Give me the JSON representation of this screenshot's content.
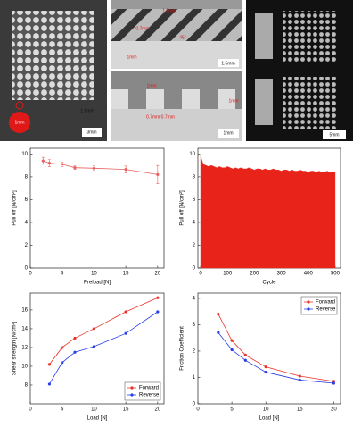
{
  "photo_labels": [
    "1mm",
    "1.5mm",
    "3mm",
    "1.5mm",
    "0.7mm",
    "45°",
    "1mm",
    "1.5mm",
    "1mm",
    "1mm",
    "0.7mm 0.7mm",
    "1mm",
    "5mm"
  ],
  "chart_data": [
    {
      "type": "line",
      "xlabel": "Preload [N]",
      "ylabel": "Pull off [N/cm²]",
      "xlim": [
        0,
        21
      ],
      "ylim": [
        0,
        10.5
      ],
      "xticks": [
        0,
        5,
        10,
        15,
        20
      ],
      "yticks": [
        0,
        2,
        4,
        6,
        8,
        10
      ],
      "x": [
        2,
        3,
        5,
        7,
        10,
        15,
        20
      ],
      "series": [
        {
          "name": null,
          "color": "#e86060",
          "values": [
            9.4,
            9.2,
            9.1,
            8.8,
            8.75,
            8.65,
            8.2
          ],
          "errors": [
            0.3,
            0.3,
            0.2,
            0.15,
            0.2,
            0.3,
            0.8
          ]
        }
      ]
    },
    {
      "type": "area",
      "xlabel": "Cycle",
      "ylabel": "Pull off [N/cm²]",
      "xlim": [
        -10,
        520
      ],
      "ylim": [
        0,
        10.5
      ],
      "xticks": [
        0,
        100,
        200,
        300,
        400,
        500
      ],
      "yticks": [
        0,
        2,
        4,
        6,
        8,
        10
      ],
      "x": [
        0,
        10,
        20,
        30,
        40,
        50,
        60,
        70,
        80,
        90,
        100,
        110,
        120,
        130,
        140,
        150,
        160,
        170,
        180,
        190,
        200,
        210,
        220,
        230,
        240,
        250,
        260,
        270,
        280,
        290,
        300,
        310,
        320,
        330,
        340,
        350,
        360,
        370,
        380,
        390,
        400,
        410,
        420,
        430,
        440,
        450,
        460,
        470,
        480,
        490,
        500
      ],
      "series": [
        {
          "name": null,
          "color": "#e8231a",
          "values": [
            9.8,
            9.1,
            9.0,
            8.9,
            9.0,
            8.9,
            8.8,
            8.9,
            8.8,
            8.8,
            8.9,
            8.8,
            8.7,
            8.8,
            8.7,
            8.8,
            8.7,
            8.7,
            8.8,
            8.7,
            8.6,
            8.7,
            8.7,
            8.6,
            8.7,
            8.6,
            8.6,
            8.7,
            8.6,
            8.6,
            8.5,
            8.6,
            8.6,
            8.5,
            8.6,
            8.5,
            8.5,
            8.6,
            8.5,
            8.5,
            8.4,
            8.5,
            8.5,
            8.4,
            8.5,
            8.4,
            8.4,
            8.5,
            8.4,
            8.4,
            8.4
          ]
        }
      ]
    },
    {
      "type": "line",
      "xlabel": "Load [N]",
      "ylabel": "Shear strength [N/cm²]",
      "xlim": [
        0,
        21
      ],
      "ylim": [
        6,
        17.8
      ],
      "xticks": [
        0,
        5,
        10,
        15,
        20
      ],
      "yticks": [
        8,
        10,
        12,
        14,
        16
      ],
      "x": [
        3,
        5,
        7,
        10,
        15,
        20
      ],
      "legend": "lower right",
      "series": [
        {
          "name": "Forward",
          "color": "#e8332a",
          "values": [
            10.2,
            12,
            13,
            14,
            15.8,
            17.3
          ]
        },
        {
          "name": "Reverse",
          "color": "#2a3ee8",
          "values": [
            8.1,
            10.4,
            11.5,
            12.1,
            13.5,
            15.8
          ]
        }
      ]
    },
    {
      "type": "line",
      "xlabel": "Load [N]",
      "ylabel": "Friction Coefficient",
      "xlim": [
        0,
        21
      ],
      "ylim": [
        0,
        4.2
      ],
      "xticks": [
        0,
        5,
        10,
        15,
        20
      ],
      "yticks": [
        0,
        1,
        2,
        3,
        4
      ],
      "x": [
        3,
        5,
        7,
        10,
        15,
        20
      ],
      "legend": "upper right",
      "series": [
        {
          "name": "Forward",
          "color": "#e8332a",
          "values": [
            3.4,
            2.4,
            1.85,
            1.4,
            1.05,
            0.85
          ]
        },
        {
          "name": "Reverse",
          "color": "#2a3ee8",
          "values": [
            2.7,
            2.05,
            1.65,
            1.2,
            0.9,
            0.78
          ]
        }
      ]
    }
  ]
}
